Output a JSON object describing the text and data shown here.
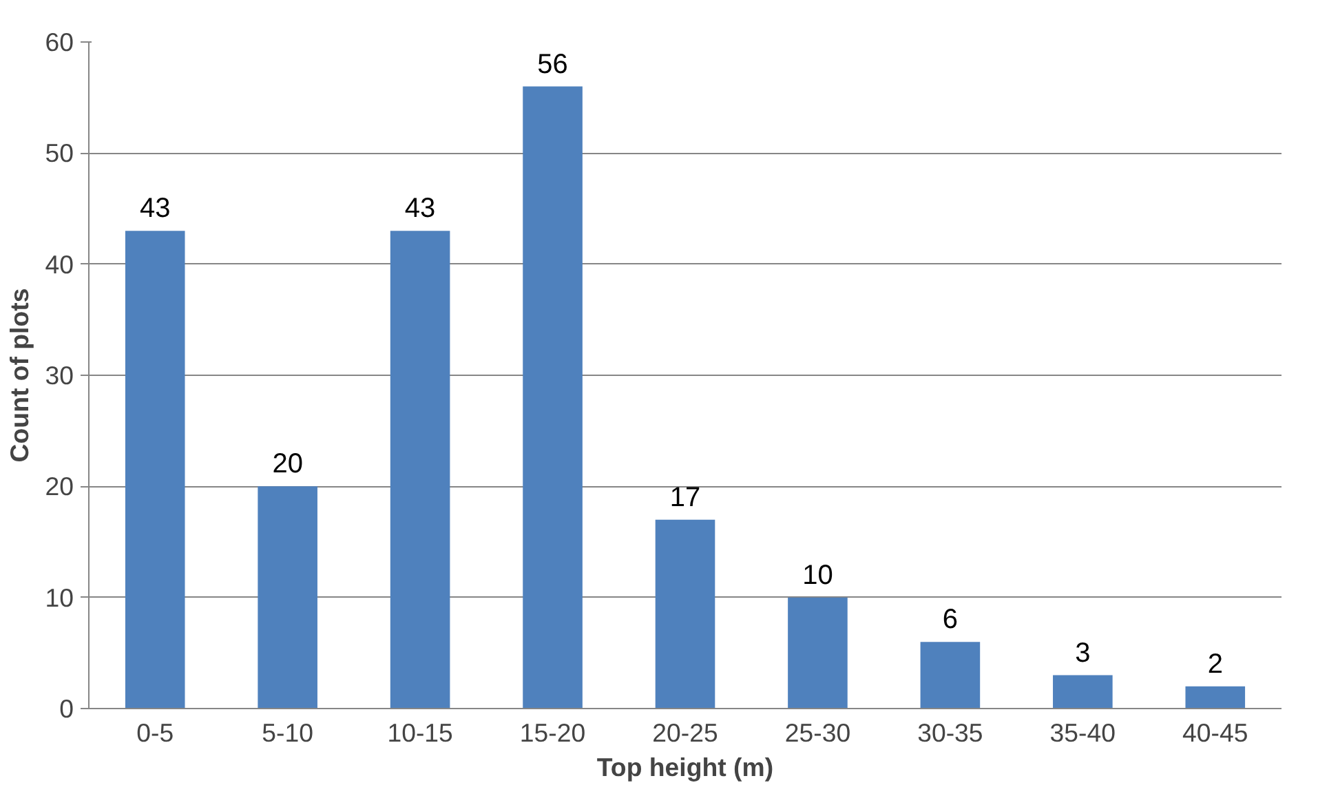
{
  "chart_data": {
    "type": "bar",
    "xlabel": "Top height (m)",
    "ylabel": "Count of plots",
    "categories": [
      "0-5",
      "5-10",
      "10-15",
      "15-20",
      "20-25",
      "25-30",
      "30-35",
      "35-40",
      "40-45"
    ],
    "values": [
      43,
      20,
      43,
      56,
      17,
      10,
      6,
      3,
      2
    ],
    "color": "#4f81bd",
    "ylim": [
      0,
      60
    ],
    "yticks": [
      0,
      10,
      20,
      30,
      40,
      50,
      60
    ],
    "grid": "y",
    "data_labels": true
  }
}
